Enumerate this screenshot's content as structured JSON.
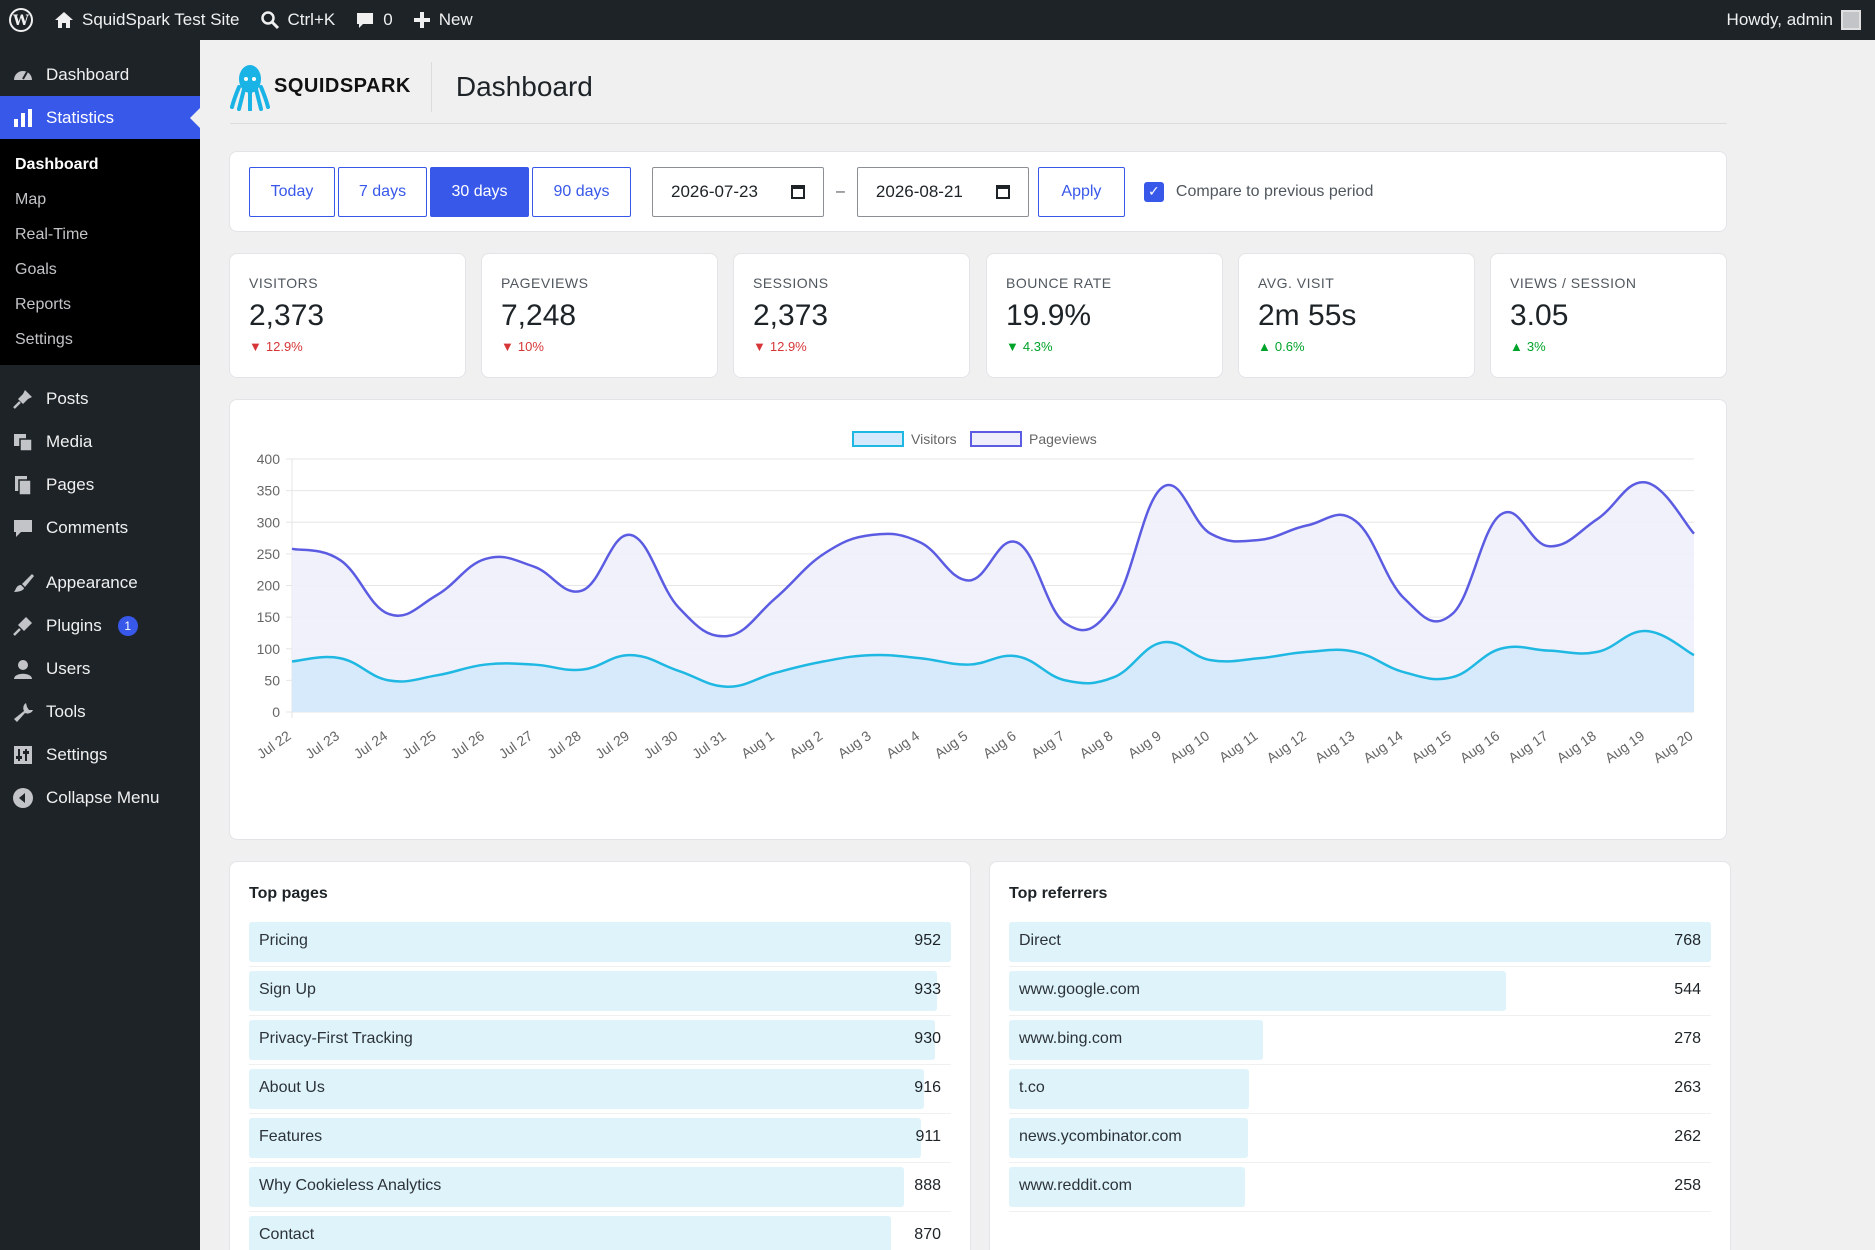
{
  "adminbar": {
    "site_name": "SquidSpark Test Site",
    "search_shortcut": "Ctrl+K",
    "comments_count": "0",
    "new_label": "New",
    "howdy": "Howdy, admin"
  },
  "sidebar": {
    "dashboard": "Dashboard",
    "statistics": "Statistics",
    "submenu": [
      "Dashboard",
      "Map",
      "Real-Time",
      "Goals",
      "Reports",
      "Settings"
    ],
    "posts": "Posts",
    "media": "Media",
    "pages": "Pages",
    "comments": "Comments",
    "appearance": "Appearance",
    "plugins": "Plugins",
    "plugins_badge": "1",
    "users": "Users",
    "tools": "Tools",
    "settings": "Settings",
    "collapse": "Collapse Menu"
  },
  "header": {
    "logo_text": "SQUIDSPARK",
    "title": "Dashboard"
  },
  "filters": {
    "ranges": [
      "Today",
      "7 days",
      "30 days",
      "90 days"
    ],
    "active_range": "30 days",
    "start_date": "2026-07-23",
    "end_date": "2026-08-21",
    "separator": "–",
    "apply": "Apply",
    "compare_label": "Compare to previous period",
    "compare_checked": true
  },
  "stats": [
    {
      "label": "VISITORS",
      "value": "2,373",
      "delta": "12.9%",
      "direction": "down"
    },
    {
      "label": "PAGEVIEWS",
      "value": "7,248",
      "delta": "10%",
      "direction": "down"
    },
    {
      "label": "SESSIONS",
      "value": "2,373",
      "delta": "12.9%",
      "direction": "down"
    },
    {
      "label": "BOUNCE RATE",
      "value": "19.9%",
      "delta": "4.3%",
      "direction": "down-good"
    },
    {
      "label": "AVG. VISIT",
      "value": "2m 55s",
      "delta": "0.6%",
      "direction": "up"
    },
    {
      "label": "VIEWS / SESSION",
      "value": "3.05",
      "delta": "3%",
      "direction": "up"
    }
  ],
  "colors": {
    "accent": "#3858e9",
    "visitors_line": "#1fb8e2",
    "visitors_fill": "#d4e9fb",
    "pageviews_line": "#5b5ce2",
    "pageviews_fill": "#efeffb",
    "down": "#d63638",
    "up": "#00a32a"
  },
  "chart_data": {
    "type": "area",
    "x": [
      "Jul 22",
      "Jul 23",
      "Jul 24",
      "Jul 25",
      "Jul 26",
      "Jul 27",
      "Jul 28",
      "Jul 29",
      "Jul 30",
      "Jul 31",
      "Aug 1",
      "Aug 2",
      "Aug 3",
      "Aug 4",
      "Aug 5",
      "Aug 6",
      "Aug 7",
      "Aug 8",
      "Aug 9",
      "Aug 10",
      "Aug 11",
      "Aug 12",
      "Aug 13",
      "Aug 14",
      "Aug 15",
      "Aug 16",
      "Aug 17",
      "Aug 18",
      "Aug 19",
      "Aug 20"
    ],
    "series": [
      {
        "name": "Visitors",
        "values": [
          80,
          85,
          50,
          58,
          75,
          75,
          67,
          90,
          65,
          40,
          62,
          80,
          90,
          85,
          75,
          88,
          50,
          55,
          110,
          82,
          85,
          95,
          95,
          63,
          55,
          100,
          97,
          95,
          128,
          90
        ]
      },
      {
        "name": "Pageviews",
        "values": [
          258,
          240,
          155,
          185,
          242,
          230,
          192,
          280,
          165,
          120,
          180,
          250,
          280,
          268,
          208,
          268,
          140,
          170,
          355,
          282,
          272,
          295,
          302,
          180,
          155,
          312,
          262,
          305,
          363,
          282
        ]
      }
    ],
    "ylim": [
      0,
      400
    ],
    "yticks": [
      0,
      50,
      100,
      150,
      200,
      250,
      300,
      350,
      400
    ],
    "legend": "top-center",
    "grid": true
  },
  "top_pages": {
    "title": "Top pages",
    "items": [
      {
        "label": "Pricing",
        "value": 952
      },
      {
        "label": "Sign Up",
        "value": 933
      },
      {
        "label": "Privacy-First Tracking",
        "value": 930
      },
      {
        "label": "About Us",
        "value": 916
      },
      {
        "label": "Features",
        "value": 911
      },
      {
        "label": "Why Cookieless Analytics",
        "value": 888
      },
      {
        "label": "Contact",
        "value": 870
      }
    ]
  },
  "top_referrers": {
    "title": "Top referrers",
    "items": [
      {
        "label": "Direct",
        "value": 768
      },
      {
        "label": "www.google.com",
        "value": 544
      },
      {
        "label": "www.bing.com",
        "value": 278
      },
      {
        "label": "t.co",
        "value": 263
      },
      {
        "label": "news.ycombinator.com",
        "value": 262
      },
      {
        "label": "www.reddit.com",
        "value": 258
      }
    ]
  }
}
